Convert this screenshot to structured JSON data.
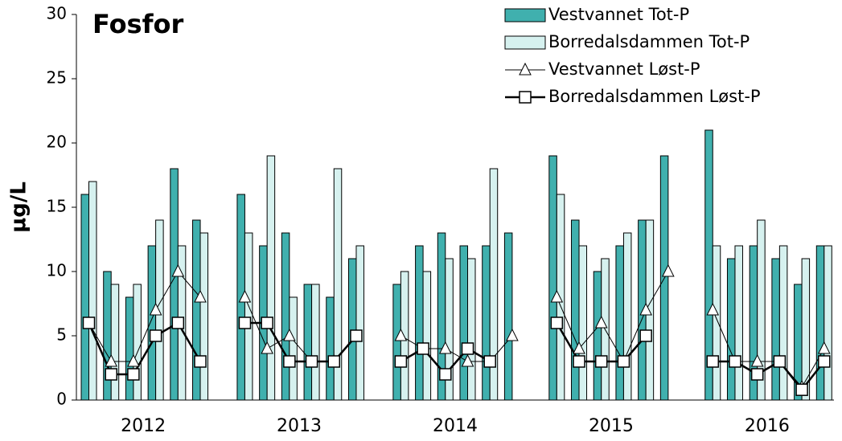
{
  "chart_data": {
    "type": "bar",
    "title": "Fosfor",
    "y_label": "µg/L",
    "categories": [
      "2012",
      null,
      null,
      null,
      null,
      null,
      null,
      "2013",
      null,
      null,
      null,
      null,
      null,
      null,
      "2014",
      null,
      null,
      null,
      null,
      null,
      null,
      "2015",
      null,
      null,
      null,
      null,
      null,
      null,
      "2016",
      null,
      null,
      null,
      null,
      null
    ],
    "series": [
      {
        "name": "Vestvannet Tot-P",
        "type": "bar",
        "color": "#40b0ae",
        "values": [
          16,
          10,
          8,
          12,
          18,
          14,
          null,
          16,
          12,
          13,
          9,
          8,
          11,
          null,
          9,
          12,
          13,
          12,
          12,
          13,
          null,
          19,
          14,
          10,
          12,
          14,
          19,
          null,
          21,
          11,
          12,
          11,
          9,
          12
        ]
      },
      {
        "name": "Borredalsdammen Tot-P",
        "type": "bar",
        "color": "#d6f1ef",
        "values": [
          17,
          9,
          9,
          14,
          12,
          13,
          null,
          13,
          19,
          8,
          9,
          18,
          12,
          null,
          10,
          10,
          11,
          11,
          18,
          null,
          null,
          16,
          12,
          11,
          13,
          14,
          null,
          null,
          12,
          12,
          14,
          12,
          11,
          12
        ]
      },
      {
        "name": "Vestvannet Løst-P",
        "type": "line",
        "marker": "triangle",
        "color": "#000000",
        "values": [
          6,
          3,
          3,
          7,
          10,
          8,
          null,
          8,
          4,
          5,
          3,
          3,
          5,
          null,
          5,
          4,
          4,
          3,
          3,
          5,
          null,
          8,
          4,
          6,
          3,
          7,
          10,
          null,
          7,
          3,
          3,
          3,
          1,
          4
        ]
      },
      {
        "name": "Borredalsdammen Løst-P",
        "type": "line",
        "marker": "square",
        "color": "#000000",
        "values": [
          6,
          2,
          2,
          5,
          6,
          3,
          null,
          6,
          6,
          3,
          3,
          3,
          5,
          null,
          3,
          4,
          2,
          4,
          3,
          null,
          null,
          6,
          3,
          3,
          3,
          5,
          null,
          null,
          3,
          3,
          2,
          3,
          0.8,
          3
        ]
      }
    ],
    "ylim": [
      0,
      30
    ],
    "yticks": [
      0,
      5,
      10,
      15,
      20,
      25,
      30
    ],
    "grid": false,
    "legend": "upper right"
  }
}
